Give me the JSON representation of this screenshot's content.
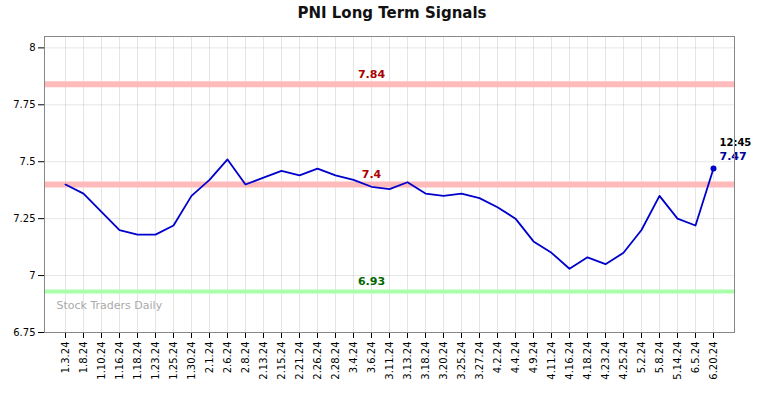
{
  "chart_data": {
    "type": "line",
    "title": "PNI Long Term Signals",
    "categories": [
      "1.3.24",
      "1.8.24",
      "1.10.24",
      "1.16.24",
      "1.18.24",
      "1.23.24",
      "1.25.24",
      "1.30.24",
      "2.1.24",
      "2.6.24",
      "2.8.24",
      "2.13.24",
      "2.15.24",
      "2.21.24",
      "2.26.24",
      "2.28.24",
      "3.4.24",
      "3.6.24",
      "3.11.24",
      "3.13.24",
      "3.18.24",
      "3.20.24",
      "3.25.24",
      "3.27.24",
      "4.2.24",
      "4.4.24",
      "4.9.24",
      "4.11.24",
      "4.16.24",
      "4.18.24",
      "4.23.24",
      "4.25.24",
      "5.2.24",
      "5.8.24",
      "5.14.24",
      "6.5.24",
      "6.20.24"
    ],
    "values": [
      7.4,
      7.36,
      7.28,
      7.2,
      7.18,
      7.18,
      7.22,
      7.35,
      7.42,
      7.51,
      7.4,
      7.43,
      7.46,
      7.44,
      7.47,
      7.44,
      7.42,
      7.39,
      7.38,
      7.41,
      7.36,
      7.35,
      7.36,
      7.34,
      7.3,
      7.25,
      7.15,
      7.1,
      7.03,
      7.08,
      7.05,
      7.1,
      7.2,
      7.35,
      7.25,
      7.22,
      7.47
    ],
    "color": "#0000CC",
    "ylim": [
      6.75,
      8.05
    ],
    "yticks": [
      6.75,
      7,
      7.25,
      7.5,
      7.75,
      8
    ],
    "grid": true,
    "reference_lines": [
      {
        "value": 7.84,
        "label": "7.84",
        "color": "#ffbbbb",
        "label_color": "#aa0000"
      },
      {
        "value": 7.4,
        "label": "7.4",
        "color": "#ffbbbb",
        "label_color": "#aa0000"
      },
      {
        "value": 6.93,
        "label": "6.93",
        "color": "#aaffaa",
        "label_color": "#006600"
      }
    ],
    "annotations": [
      {
        "text": "12:45",
        "color": "#000000"
      },
      {
        "text": "7.47",
        "color": "#000099"
      }
    ],
    "watermark": "Stock Traders Daily"
  }
}
